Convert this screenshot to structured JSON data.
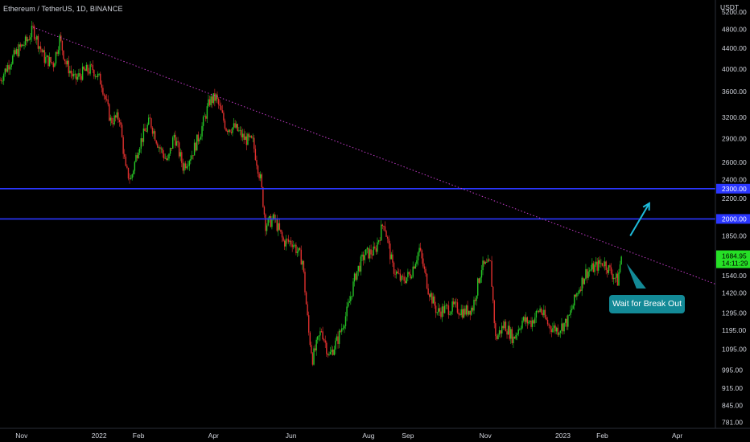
{
  "header": {
    "title": "Ethereum / TetherUS, 1D, BINANCE"
  },
  "axis": {
    "currency": "USDT",
    "y_ticks": [
      5200,
      4800,
      4400,
      4000,
      3600,
      3200,
      2900,
      2600,
      2400,
      2300,
      2200,
      2000,
      1850,
      1700,
      1540,
      1420,
      1295,
      1195,
      1095,
      995,
      915,
      845,
      781
    ],
    "y_tick_labels": [
      "5200.00",
      "4800.00",
      "4400.00",
      "4000.00",
      "3600.00",
      "3200.00",
      "2900.00",
      "2600.00",
      "2400.00",
      "2300.00",
      "2200.00",
      "2000.00",
      "1850.00",
      "1700.00",
      "1540.00",
      "1420.00",
      "1295.00",
      "1195.00",
      "1095.00",
      "995.00",
      "915.00",
      "845.00",
      "781.00"
    ],
    "x_ticks": [
      {
        "label": "Nov",
        "date": "2021-11-01"
      },
      {
        "label": "2022",
        "date": "2022-01-01"
      },
      {
        "label": "Feb",
        "date": "2022-02-01"
      },
      {
        "label": "Apr",
        "date": "2022-04-01"
      },
      {
        "label": "Jun",
        "date": "2022-06-01"
      },
      {
        "label": "Aug",
        "date": "2022-08-01"
      },
      {
        "label": "Sep",
        "date": "2022-09-01"
      },
      {
        "label": "Nov",
        "date": "2022-11-01"
      },
      {
        "label": "2023",
        "date": "2023-01-01"
      },
      {
        "label": "Feb",
        "date": "2023-02-01"
      },
      {
        "label": "Apr",
        "date": "2023-04-01"
      }
    ],
    "y_scale": "log",
    "y_range": [
      760,
      5500
    ],
    "x_range": [
      "2021-10-15",
      "2023-05-01"
    ]
  },
  "chart_data": {
    "type": "line",
    "description_free": true,
    "series": [
      {
        "points": [
          [
            "2021-10-15",
            3800
          ],
          [
            "2021-10-22",
            4100
          ],
          [
            "2021-10-29",
            4350
          ],
          [
            "2021-11-05",
            4550
          ],
          [
            "2021-11-10",
            4800
          ],
          [
            "2021-11-19",
            4200
          ],
          [
            "2021-11-26",
            4100
          ],
          [
            "2021-12-01",
            4600
          ],
          [
            "2021-12-06",
            4100
          ],
          [
            "2021-12-13",
            3800
          ],
          [
            "2021-12-20",
            3950
          ],
          [
            "2021-12-27",
            4000
          ],
          [
            "2022-01-03",
            3750
          ],
          [
            "2022-01-10",
            3150
          ],
          [
            "2022-01-17",
            3200
          ],
          [
            "2022-01-22",
            2500
          ],
          [
            "2022-01-26",
            2400
          ],
          [
            "2022-02-01",
            2800
          ],
          [
            "2022-02-10",
            3150
          ],
          [
            "2022-02-17",
            2800
          ],
          [
            "2022-02-24",
            2600
          ],
          [
            "2022-03-01",
            2950
          ],
          [
            "2022-03-08",
            2550
          ],
          [
            "2022-03-15",
            2700
          ],
          [
            "2022-03-22",
            3000
          ],
          [
            "2022-03-29",
            3450
          ],
          [
            "2022-04-03",
            3500
          ],
          [
            "2022-04-11",
            3050
          ],
          [
            "2022-04-18",
            3050
          ],
          [
            "2022-04-25",
            2900
          ],
          [
            "2022-05-02",
            2850
          ],
          [
            "2022-05-08",
            2400
          ],
          [
            "2022-05-12",
            1950
          ],
          [
            "2022-05-19",
            2000
          ],
          [
            "2022-05-26",
            1800
          ],
          [
            "2022-06-02",
            1800
          ],
          [
            "2022-06-10",
            1650
          ],
          [
            "2022-06-15",
            1180
          ],
          [
            "2022-06-18",
            1050
          ],
          [
            "2022-06-25",
            1200
          ],
          [
            "2022-07-01",
            1060
          ],
          [
            "2022-07-08",
            1150
          ],
          [
            "2022-07-15",
            1300
          ],
          [
            "2022-07-22",
            1550
          ],
          [
            "2022-07-29",
            1700
          ],
          [
            "2022-08-06",
            1720
          ],
          [
            "2022-08-13",
            1980
          ],
          [
            "2022-08-20",
            1600
          ],
          [
            "2022-08-27",
            1500
          ],
          [
            "2022-09-03",
            1550
          ],
          [
            "2022-09-10",
            1740
          ],
          [
            "2022-09-17",
            1450
          ],
          [
            "2022-09-24",
            1300
          ],
          [
            "2022-10-01",
            1320
          ],
          [
            "2022-10-08",
            1330
          ],
          [
            "2022-10-15",
            1300
          ],
          [
            "2022-10-22",
            1330
          ],
          [
            "2022-10-29",
            1600
          ],
          [
            "2022-11-05",
            1620
          ],
          [
            "2022-11-09",
            1150
          ],
          [
            "2022-11-16",
            1230
          ],
          [
            "2022-11-23",
            1150
          ],
          [
            "2022-11-30",
            1250
          ],
          [
            "2022-12-07",
            1240
          ],
          [
            "2022-12-14",
            1320
          ],
          [
            "2022-12-21",
            1220
          ],
          [
            "2022-12-28",
            1200
          ],
          [
            "2023-01-05",
            1250
          ],
          [
            "2023-01-12",
            1420
          ],
          [
            "2023-01-19",
            1560
          ],
          [
            "2023-01-26",
            1600
          ],
          [
            "2023-02-02",
            1640
          ],
          [
            "2023-02-09",
            1550
          ],
          [
            "2023-02-13",
            1500
          ],
          [
            "2023-02-16",
            1684.95
          ]
        ]
      }
    ],
    "horizontal_lines": [
      {
        "value": 2300,
        "label": "2300.00",
        "color": "#2a36ff"
      },
      {
        "value": 2000,
        "label": "2000.00",
        "color": "#2a36ff"
      }
    ],
    "trendline": {
      "from": [
        "2021-11-10",
        4850
      ],
      "to": [
        "2023-05-01",
        1480
      ],
      "color": "#c23bc8",
      "style": "dotted"
    },
    "current_price": {
      "value": 1684.95,
      "label": "1684.95",
      "countdown": "14:11:29",
      "color": "#26e026"
    },
    "annotation": {
      "text": "Wait for Break Out",
      "color": "#138a97"
    },
    "arrow": {
      "from": [
        "2023-02-23",
        1850
      ],
      "to": [
        "2023-03-10",
        2150
      ],
      "color": "#1ebcdc"
    },
    "pointer_line": {
      "from": [
        "2023-02-20",
        1630
      ],
      "to": [
        "2023-03-03",
        1450
      ],
      "color": "#1ebcdc"
    },
    "colors": {
      "up": "#26c826",
      "down": "#e0302e",
      "background": "#000000"
    }
  }
}
